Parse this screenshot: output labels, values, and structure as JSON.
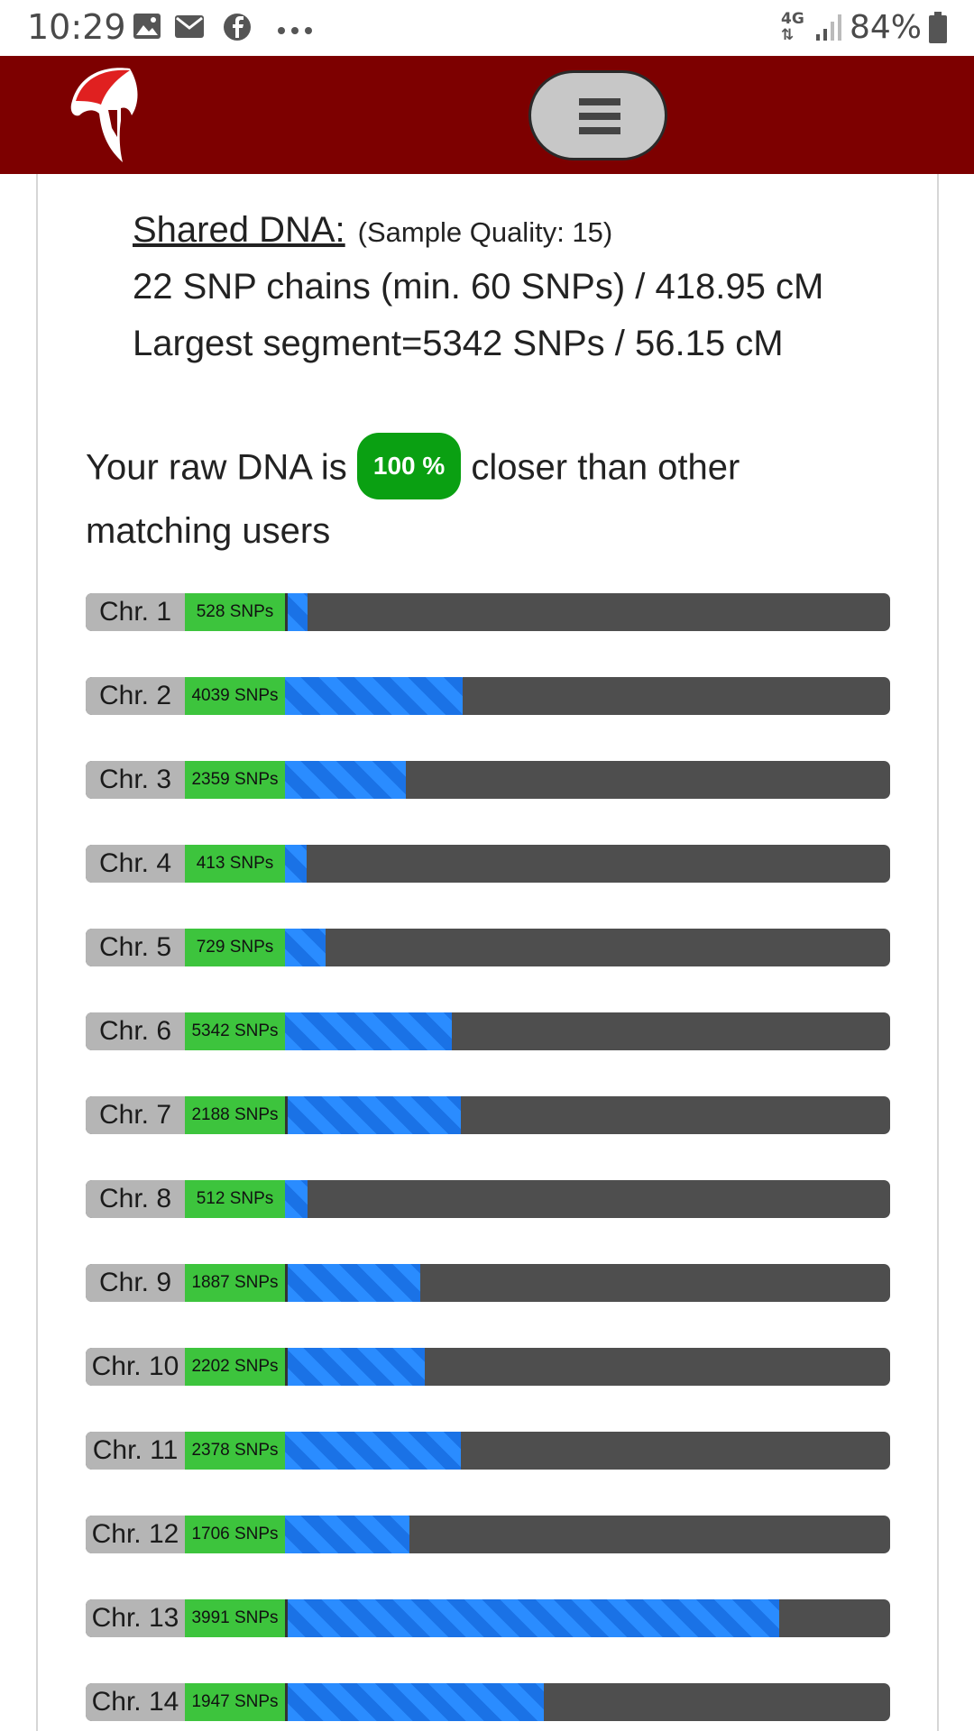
{
  "status_bar": {
    "time": "10:29",
    "network": "4G",
    "battery": "84%"
  },
  "header": {
    "logo_icon": "spartan-helmet-icon",
    "menu_icon": "hamburger-menu-icon"
  },
  "shared_dna": {
    "title": "Shared DNA:",
    "sample_quality": "(Sample Quality: 15)",
    "chains_line": "22 SNP chains (min. 60 SNPs) / 418.95 cM",
    "largest_line": "Largest segment=5342 SNPs / 56.15 cM"
  },
  "closeness": {
    "prefix": "Your raw DNA is",
    "badge": "100 %",
    "suffix": "closer than other matching users"
  },
  "chromosomes": [
    {
      "label": "Chr. 1",
      "snps": "528 SNPs",
      "fill": 0.038,
      "edge": true
    },
    {
      "label": "Chr. 2",
      "snps": "4039 SNPs",
      "fill": 0.293,
      "edge": false
    },
    {
      "label": "Chr. 3",
      "snps": "2359 SNPs",
      "fill": 0.199,
      "edge": false
    },
    {
      "label": "Chr. 4",
      "snps": "413 SNPs",
      "fill": 0.036,
      "edge": false
    },
    {
      "label": "Chr. 5",
      "snps": "729 SNPs",
      "fill": 0.067,
      "edge": false
    },
    {
      "label": "Chr. 6",
      "snps": "5342 SNPs",
      "fill": 0.275,
      "edge": false
    },
    {
      "label": "Chr. 7",
      "snps": "2188 SNPs",
      "fill": 0.291,
      "edge": true
    },
    {
      "label": "Chr. 8",
      "snps": "512 SNPs",
      "fill": 0.037,
      "edge": false
    },
    {
      "label": "Chr. 9",
      "snps": "1887 SNPs",
      "fill": 0.223,
      "edge": true
    },
    {
      "label": "Chr. 10",
      "snps": "2202 SNPs",
      "fill": 0.231,
      "edge": true
    },
    {
      "label": "Chr. 11",
      "snps": "2378 SNPs",
      "fill": 0.29,
      "edge": false
    },
    {
      "label": "Chr. 12",
      "snps": "1706 SNPs",
      "fill": 0.206,
      "edge": false
    },
    {
      "label": "Chr. 13",
      "snps": "3991 SNPs",
      "fill": 0.816,
      "edge": true
    },
    {
      "label": "Chr. 14",
      "snps": "1947 SNPs",
      "fill": 0.427,
      "edge": true
    }
  ],
  "colors": {
    "header": "#7d0000",
    "badge": "#0aa012",
    "snp_green": "#3dc43d",
    "segment_blue": "#2a8cff",
    "track": "#4e4e4e"
  }
}
